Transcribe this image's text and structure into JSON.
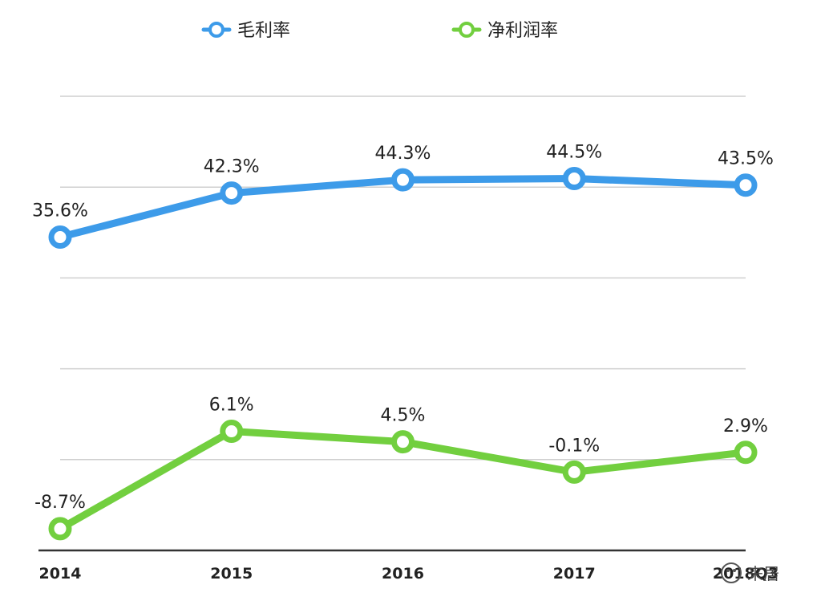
{
  "chart_data": {
    "type": "line",
    "categories": [
      "2014",
      "2015",
      "2016",
      "2017",
      "2018Q3"
    ],
    "x_tick_labels": [
      "2014",
      "2015",
      "2016",
      "2017",
      "2018Q3"
    ],
    "series": [
      {
        "name": "毛利率",
        "color": "#3d9be9",
        "values": [
          35.6,
          42.3,
          44.3,
          44.5,
          43.5
        ],
        "labels": [
          "35.6%",
          "42.3%",
          "44.3%",
          "44.5%",
          "43.5%"
        ]
      },
      {
        "name": "净利润率",
        "color": "#72cf3f",
        "values": [
          -8.7,
          6.1,
          4.5,
          -0.1,
          2.9
        ],
        "labels": [
          "-8.7%",
          "6.1%",
          "4.5%",
          "-0.1%",
          "2.9%"
        ]
      }
    ],
    "ylim": [
      -12,
      57
    ],
    "grid": true,
    "legend": "top",
    "y_axis_labels": false
  },
  "watermark": {
    "text": "来居"
  }
}
